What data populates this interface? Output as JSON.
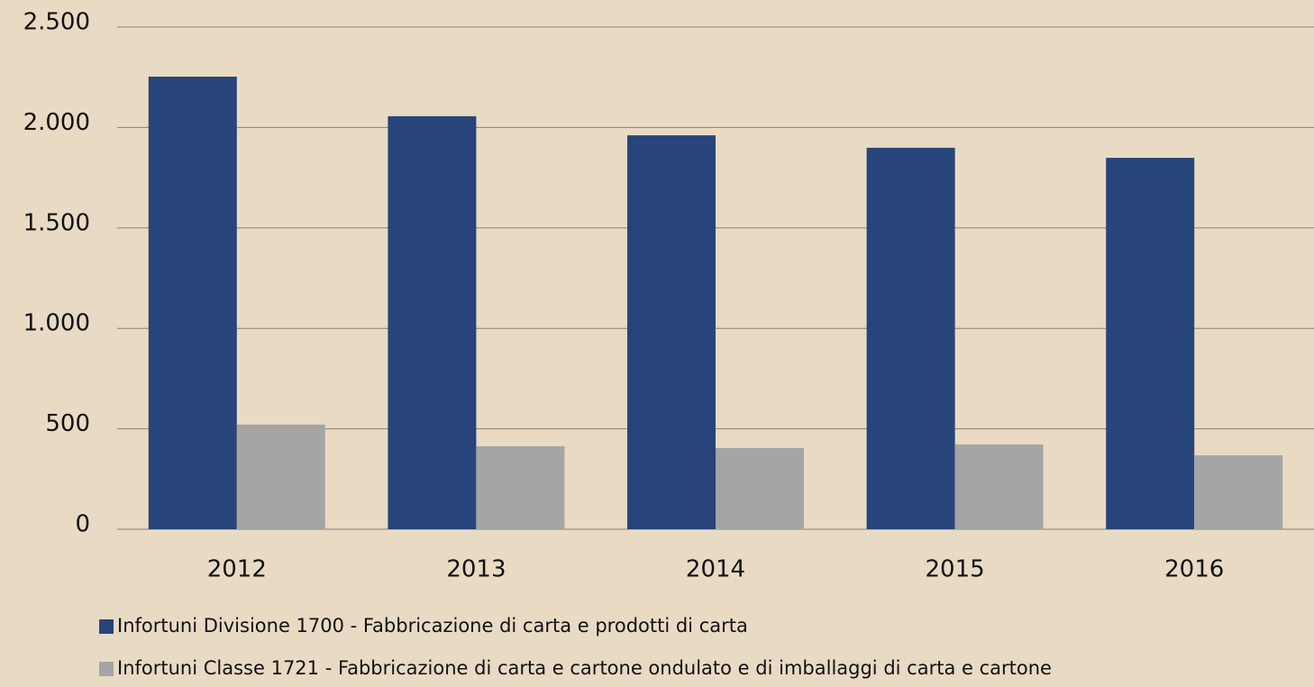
{
  "chart_data": {
    "type": "bar",
    "categories": [
      "2012",
      "2013",
      "2014",
      "2015",
      "2016"
    ],
    "series": [
      {
        "name": "Infortuni Divisione 1700 - Fabbricazione di carta e prodotti di carta",
        "color": "#27457a",
        "values": [
          2253,
          2056,
          1961,
          1899,
          1849
        ]
      },
      {
        "name": "Infortuni Classe 1721 - Fabbricazione di carta e cartone ondulato e di imballaggi di carta e cartone",
        "color": "#a5a5a5",
        "values": [
          521,
          413,
          404,
          422,
          368
        ]
      }
    ],
    "ylim": [
      0,
      2500
    ],
    "yticks": [
      0,
      500,
      {
        "value": 1000,
        "label": "1.000"
      },
      {
        "value": 1500,
        "label": "1.500"
      },
      {
        "value": 2000,
        "label": "2.000"
      },
      {
        "value": 2500,
        "label": "2.500"
      }
    ],
    "grid": true
  }
}
